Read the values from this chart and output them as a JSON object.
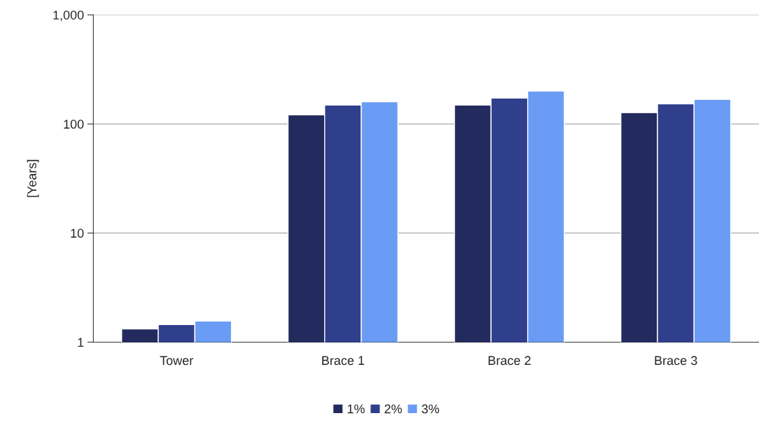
{
  "chart_data": {
    "type": "bar",
    "ylabel": "[Years]",
    "categories": [
      "Tower",
      "Brace 1",
      "Brace 2",
      "Brace 3"
    ],
    "series": [
      {
        "name": "1%",
        "color": "#232b5e",
        "values": [
          1.32,
          121,
          149,
          127
        ]
      },
      {
        "name": "2%",
        "color": "#2f3f8c",
        "values": [
          1.45,
          149,
          173,
          153
        ]
      },
      {
        "name": "3%",
        "color": "#6a9cf5",
        "values": [
          1.56,
          160,
          200,
          168
        ]
      }
    ],
    "log": true,
    "ylim": [
      1,
      1000
    ],
    "yticks": [
      {
        "value": 1,
        "label": "1"
      },
      {
        "value": 10,
        "label": "10"
      },
      {
        "value": 100,
        "label": "100"
      },
      {
        "value": 1000,
        "label": "1,000"
      }
    ],
    "grid": "y",
    "legend": "bottom"
  }
}
